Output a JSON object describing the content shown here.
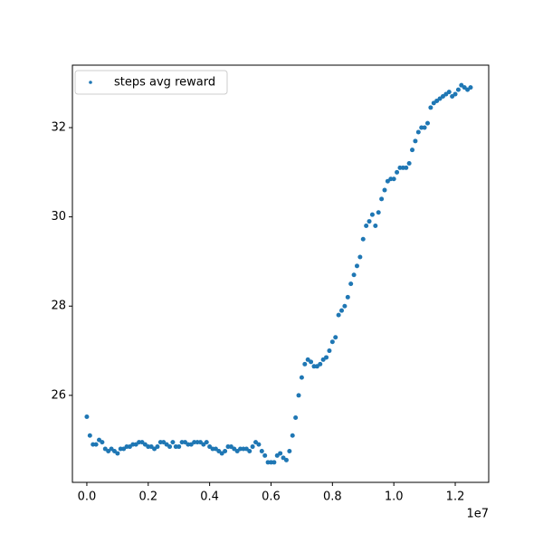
{
  "chart_data": {
    "type": "scatter",
    "series": [
      {
        "name": "steps avg reward",
        "color": "#1f77b4",
        "x": [
          0,
          100000,
          200000,
          300000,
          400000,
          500000,
          600000,
          700000,
          800000,
          900000,
          1000000,
          1100000,
          1200000,
          1300000,
          1400000,
          1500000,
          1600000,
          1700000,
          1800000,
          1900000,
          2000000,
          2100000,
          2200000,
          2300000,
          2400000,
          2500000,
          2600000,
          2700000,
          2800000,
          2900000,
          3000000,
          3100000,
          3200000,
          3300000,
          3400000,
          3500000,
          3600000,
          3700000,
          3800000,
          3900000,
          4000000,
          4100000,
          4200000,
          4300000,
          4400000,
          4500000,
          4600000,
          4700000,
          4800000,
          4900000,
          5000000,
          5100000,
          5200000,
          5300000,
          5400000,
          5500000,
          5600000,
          5700000,
          5800000,
          5900000,
          6000000,
          6100000,
          6200000,
          6300000,
          6400000,
          6500000,
          6600000,
          6700000,
          6800000,
          6900000,
          7000000,
          7100000,
          7200000,
          7300000,
          7400000,
          7500000,
          7600000,
          7700000,
          7800000,
          7900000,
          8000000,
          8100000,
          8200000,
          8300000,
          8400000,
          8500000,
          8600000,
          8700000,
          8800000,
          8900000,
          9000000,
          9100000,
          9200000,
          9300000,
          9400000,
          9500000,
          9600000,
          9700000,
          9800000,
          9900000,
          10000000,
          10100000,
          10200000,
          10300000,
          10400000,
          10500000,
          10600000,
          10700000,
          10800000,
          10900000,
          11000000,
          11100000,
          11200000,
          11300000,
          11400000,
          11500000,
          11600000,
          11700000,
          11800000,
          11900000,
          12000000,
          12100000,
          12200000,
          12300000,
          12400000,
          12500000
        ],
        "values": [
          25.52,
          25.1,
          24.9,
          24.9,
          25.0,
          24.95,
          24.8,
          24.75,
          24.8,
          24.75,
          24.7,
          24.8,
          24.8,
          24.85,
          24.85,
          24.9,
          24.9,
          24.95,
          24.95,
          24.9,
          24.85,
          24.85,
          24.8,
          24.85,
          24.95,
          24.95,
          24.9,
          24.85,
          24.95,
          24.85,
          24.85,
          24.95,
          24.95,
          24.9,
          24.9,
          24.95,
          24.95,
          24.95,
          24.9,
          24.95,
          24.85,
          24.8,
          24.8,
          24.75,
          24.7,
          24.75,
          24.85,
          24.85,
          24.8,
          24.75,
          24.8,
          24.8,
          24.8,
          24.75,
          24.85,
          24.95,
          24.9,
          24.75,
          24.65,
          24.5,
          24.5,
          24.5,
          24.65,
          24.7,
          24.6,
          24.55,
          24.75,
          25.1,
          25.5,
          26.0,
          26.4,
          26.7,
          26.8,
          26.75,
          26.65,
          26.65,
          26.7,
          26.8,
          26.85,
          27.0,
          27.2,
          27.3,
          27.8,
          27.9,
          28.0,
          28.2,
          28.5,
          28.7,
          28.9,
          29.1,
          29.5,
          29.8,
          29.9,
          30.05,
          29.8,
          30.1,
          30.4,
          30.6,
          30.8,
          30.85,
          30.85,
          31.0,
          31.1,
          31.1,
          31.1,
          31.2,
          31.5,
          31.7,
          31.9,
          32.0,
          32.0,
          32.1,
          32.45,
          32.55,
          32.6,
          32.65,
          32.7,
          32.75,
          32.8,
          32.7,
          32.75,
          32.85,
          32.95,
          32.9,
          32.85,
          32.9
        ]
      }
    ],
    "xlim": [
      -470000,
      13090000
    ],
    "ylim": [
      24.05,
      33.4
    ],
    "xticks": [
      {
        "value": 0,
        "label": "0.0"
      },
      {
        "value": 2000000,
        "label": "0.2"
      },
      {
        "value": 4000000,
        "label": "0.4"
      },
      {
        "value": 6000000,
        "label": "0.6"
      },
      {
        "value": 8000000,
        "label": "0.8"
      },
      {
        "value": 10000000,
        "label": "1.0"
      },
      {
        "value": 12000000,
        "label": "1.2"
      }
    ],
    "x_offset_label": "1e7",
    "yticks": [
      26,
      28,
      30,
      32
    ],
    "legend": "upper left"
  }
}
